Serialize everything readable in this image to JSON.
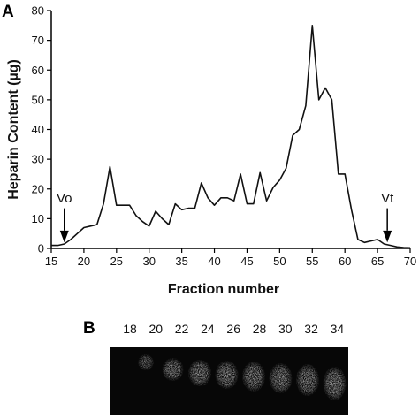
{
  "panel_a_label": "A",
  "panel_b_label": "B",
  "chart_data": {
    "type": "line",
    "title": "",
    "xlabel": "Fraction number",
    "ylabel": "Heparin Content (µg)",
    "xlim": [
      15,
      70
    ],
    "ylim": [
      0,
      80
    ],
    "xticks": [
      15,
      20,
      25,
      30,
      35,
      40,
      45,
      50,
      55,
      60,
      65,
      70
    ],
    "yticks": [
      0,
      10,
      20,
      30,
      40,
      50,
      60,
      70,
      80
    ],
    "grid": false,
    "legend": "none",
    "series": [
      {
        "x": [
          15,
          16,
          17,
          18,
          19,
          20,
          21,
          22,
          23,
          24,
          25,
          26,
          27,
          28,
          29,
          30,
          31,
          32,
          33,
          34,
          35,
          36,
          37,
          38,
          39,
          40,
          41,
          42,
          43,
          44,
          45,
          46,
          47,
          48,
          49,
          50,
          51,
          52,
          53,
          54,
          55,
          56,
          57,
          58,
          59,
          60,
          61,
          62,
          63,
          64,
          65,
          66,
          67,
          68,
          69,
          70
        ],
        "values": [
          1,
          1,
          1.5,
          3,
          5,
          7,
          7.5,
          8,
          15,
          27.5,
          14.5,
          14.5,
          14.5,
          11,
          9,
          7.5,
          12.5,
          10,
          8,
          15,
          13,
          13.5,
          13.5,
          22,
          17,
          14.5,
          17,
          17,
          16,
          25,
          15,
          15,
          25.5,
          16,
          20.5,
          23,
          27,
          38,
          40,
          48,
          75,
          50,
          54,
          50,
          25,
          25,
          13,
          3,
          2,
          2.5,
          3,
          1.5,
          1,
          0.5,
          0.3,
          0.2
        ]
      }
    ],
    "annotations": [
      {
        "text": "Vo",
        "x": 17,
        "y": 0
      },
      {
        "text": "Vt",
        "x": 66.5,
        "y": 0
      }
    ]
  },
  "gel": {
    "lane_labels": [
      "18",
      "20",
      "22",
      "24",
      "26",
      "28",
      "30",
      "32",
      "34"
    ]
  }
}
